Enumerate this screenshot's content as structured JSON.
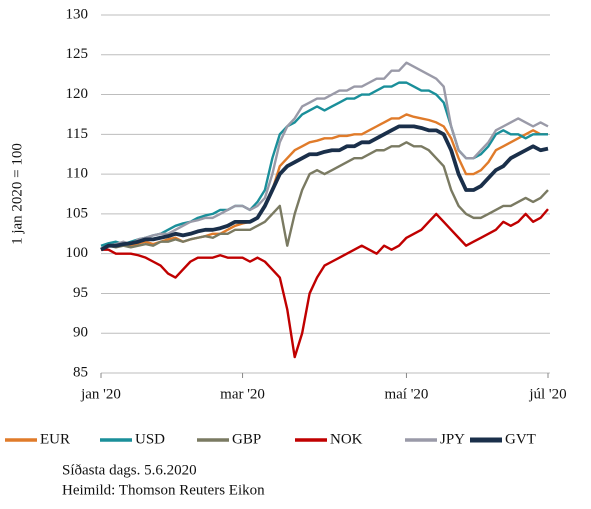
{
  "chart_data": {
    "type": "line",
    "ylabel": "1 jan 2020 = 100",
    "categories": [
      "jan '20",
      null,
      null,
      null,
      null,
      null,
      null,
      null,
      null,
      null,
      null,
      null,
      null,
      null,
      null,
      null,
      null,
      null,
      null,
      "mar '20",
      null,
      null,
      null,
      null,
      null,
      null,
      null,
      null,
      null,
      null,
      null,
      null,
      null,
      null,
      null,
      null,
      null,
      null,
      null,
      null,
      null,
      "maí '20",
      null,
      null,
      null,
      null,
      null,
      null,
      null,
      null,
      null,
      null,
      null,
      null,
      null,
      null,
      null,
      null,
      null,
      null,
      "júl '20"
    ],
    "series": [
      {
        "name": "EUR",
        "color": "#e07b2a",
        "values": [
          100.5,
          101,
          101,
          101.2,
          101,
          101.3,
          101.5,
          101.2,
          101.5,
          101.8,
          102,
          101.5,
          101.8,
          102,
          102.2,
          102.5,
          102.5,
          103,
          103.5,
          103.8,
          104,
          104.5,
          106,
          108,
          111,
          112,
          113,
          113.5,
          114,
          114.2,
          114.5,
          114.5,
          114.8,
          114.8,
          115,
          115,
          115.5,
          116,
          116.5,
          117,
          117,
          117.5,
          117.2,
          117,
          116.8,
          116.5,
          116,
          114.5,
          112,
          110,
          110,
          110.5,
          111.5,
          113,
          113.5,
          114,
          114.5,
          115,
          115.5,
          115,
          115
        ]
      },
      {
        "name": "USD",
        "color": "#1a8f9a",
        "values": [
          101,
          101.3,
          101.5,
          101.2,
          101.5,
          101.8,
          102,
          102.3,
          102.5,
          103,
          103.5,
          103.8,
          104,
          104.5,
          104.8,
          105,
          105.5,
          105.5,
          106,
          106,
          105.5,
          106.5,
          108,
          112,
          115,
          116,
          116.5,
          117.5,
          118,
          118.5,
          118,
          118.5,
          119,
          119.5,
          119.5,
          120,
          120,
          120.5,
          121,
          121,
          121.5,
          121.5,
          121,
          120.5,
          120.5,
          120,
          119,
          116,
          113,
          112,
          112,
          112.5,
          113.5,
          115,
          115.5,
          115,
          115,
          114.5,
          115,
          115,
          115
        ]
      },
      {
        "name": "GBP",
        "color": "#7a7a62",
        "values": [
          100.5,
          101,
          100.8,
          101,
          100.8,
          101,
          101.2,
          101,
          101.5,
          101.5,
          101.8,
          101.5,
          101.8,
          102,
          102.2,
          102,
          102.5,
          102.5,
          103,
          103,
          103,
          103.5,
          104,
          105,
          106,
          101,
          105,
          108,
          110,
          110.5,
          110,
          110.5,
          111,
          111.5,
          112,
          112,
          112.5,
          113,
          113,
          113.5,
          113.5,
          114,
          113.5,
          113.5,
          113,
          112,
          111,
          108,
          106,
          105,
          104.5,
          104.5,
          105,
          105.5,
          106,
          106,
          106.5,
          107,
          106.5,
          107,
          108
        ]
      },
      {
        "name": "NOK",
        "color": "#c00000",
        "values": [
          100.5,
          100.5,
          100,
          100,
          100,
          99.8,
          99.5,
          99,
          98.5,
          97.5,
          97,
          98,
          99,
          99.5,
          99.5,
          99.5,
          99.8,
          99.5,
          99.5,
          99.5,
          99,
          99.5,
          99,
          98,
          97,
          93,
          87,
          90,
          95,
          97,
          98.5,
          99,
          99.5,
          100,
          100.5,
          101,
          100.5,
          100,
          101,
          100.5,
          101,
          102,
          102.5,
          103,
          104,
          105,
          104,
          103,
          102,
          101,
          101.5,
          102,
          102.5,
          103,
          104,
          103.5,
          104,
          105,
          104,
          104.5,
          105.6
        ]
      },
      {
        "name": "JPY",
        "color": "#9a9aa8",
        "values": [
          100.5,
          101,
          101.2,
          101.5,
          101.2,
          101.8,
          102,
          102.3,
          102.5,
          102.5,
          103,
          103.5,
          104,
          104.2,
          104.5,
          104.5,
          105,
          105.5,
          106,
          106,
          105.5,
          106,
          107,
          110,
          114,
          116,
          117,
          118.5,
          119,
          119.5,
          119.5,
          120,
          120.5,
          120.5,
          121,
          121,
          121.5,
          122,
          122,
          123,
          123,
          124,
          123.5,
          123,
          122.5,
          122,
          121,
          116,
          113,
          112,
          112,
          113,
          114,
          115.5,
          116,
          116.5,
          117,
          116.5,
          116,
          116.5,
          116
        ]
      },
      {
        "name": "GVT",
        "color": "#1a2f4a",
        "values": [
          100.5,
          101,
          101,
          101.2,
          101.3,
          101.5,
          101.8,
          101.8,
          102,
          102.2,
          102.5,
          102.3,
          102.5,
          102.8,
          103,
          103,
          103.2,
          103.5,
          104,
          104,
          104,
          104.5,
          106,
          108,
          110,
          111,
          111.5,
          112,
          112.5,
          112.5,
          112.8,
          113,
          113,
          113.5,
          113.5,
          114,
          114,
          114.5,
          115,
          115.5,
          116,
          116,
          116,
          115.8,
          115.5,
          115.5,
          115,
          113,
          110,
          108,
          108,
          108.5,
          109.5,
          110.5,
          111,
          112,
          112.5,
          113,
          113.5,
          113,
          113.2
        ]
      }
    ],
    "ylim": [
      85,
      130
    ],
    "yticks": [
      85,
      90,
      95,
      100,
      105,
      110,
      115,
      120,
      125,
      130
    ],
    "grid": true,
    "notes": [
      "Síðasta dags. 5.6.2020",
      "Heimild: Thomson Reuters Eikon"
    ]
  }
}
